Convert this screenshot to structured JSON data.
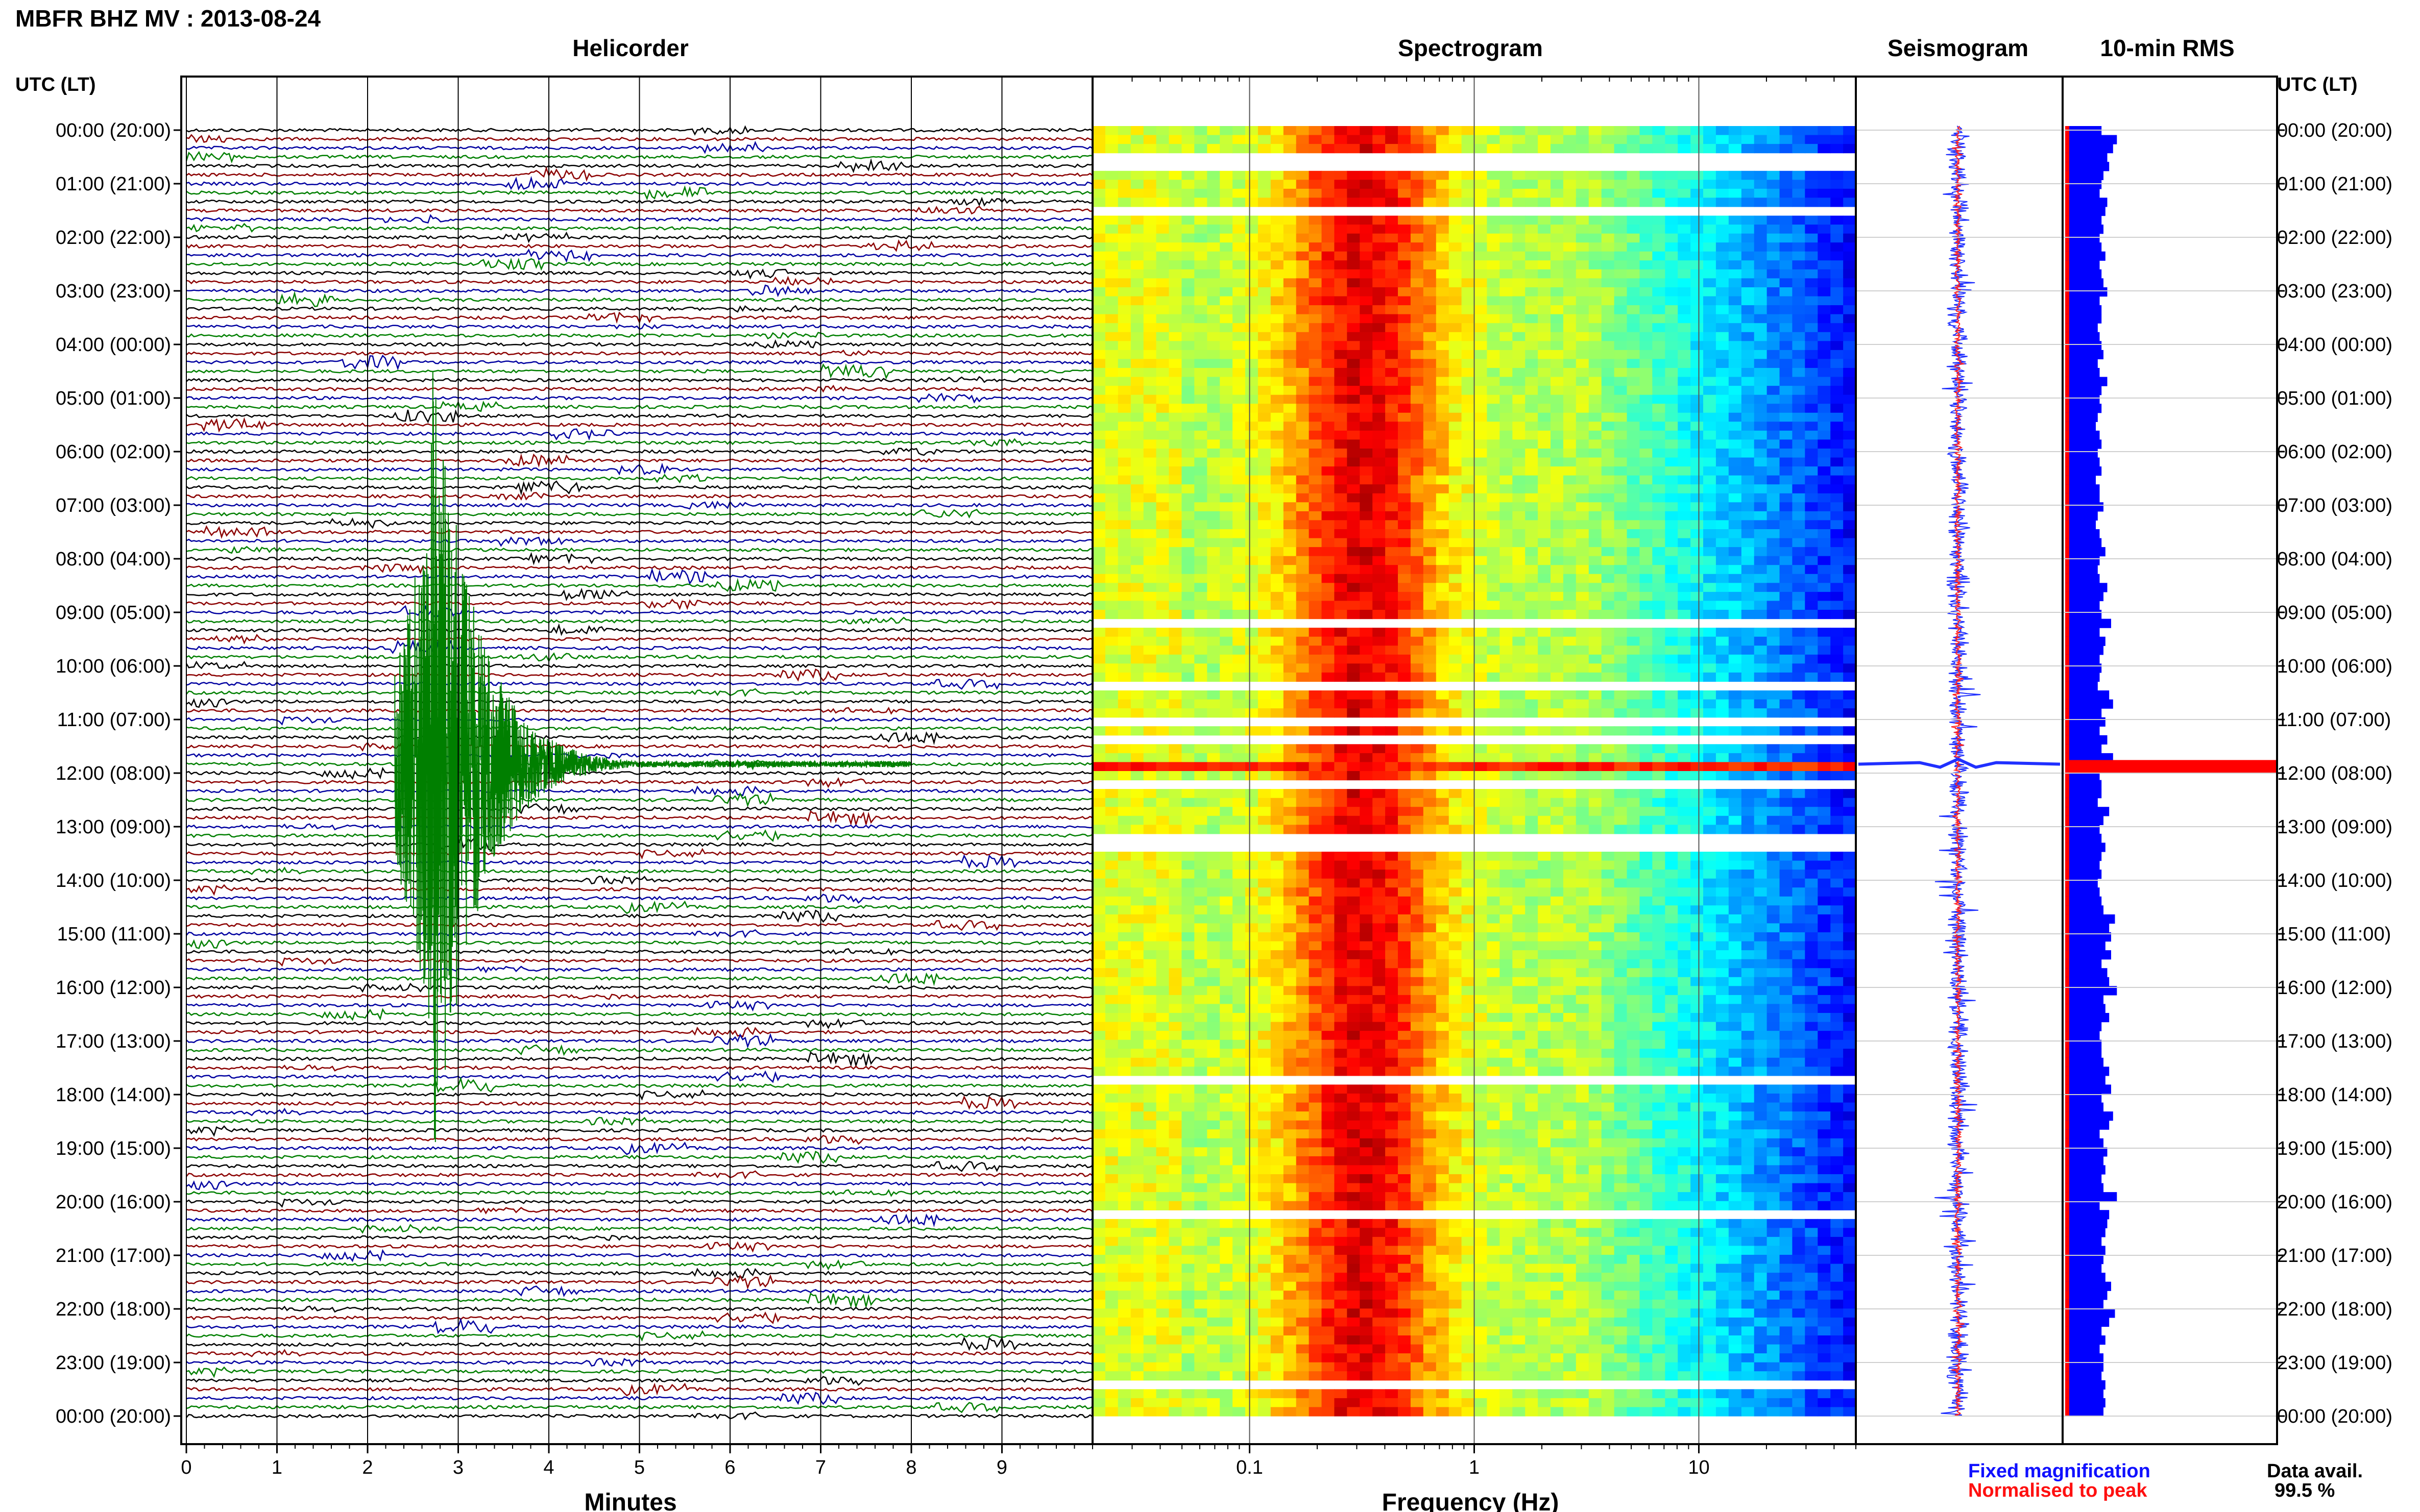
{
  "header": {
    "title": "MBFR BHZ MV : 2013-08-24"
  },
  "panels": {
    "helicorder": {
      "title": "Helicorder",
      "xlabel": "Minutes"
    },
    "spectrogram": {
      "title": "Spectrogram",
      "xlabel": "Frequency (Hz)"
    },
    "seismogram": {
      "title": "Seismogram"
    },
    "rms": {
      "title": "10-min RMS"
    }
  },
  "axis": {
    "left_label": "UTC (LT)",
    "right_label": "UTC (LT)"
  },
  "legend": {
    "fixed": "Fixed magnification",
    "normalised": "Normalised to peak",
    "fixed_color": "#1010ff",
    "normalised_color": "#ff1010"
  },
  "availability": {
    "label": "Data avail.",
    "value": "99.5 %"
  },
  "colors": {
    "trace_cycle": [
      "#000000",
      "#8b0000",
      "#0000a0",
      "#007f00"
    ],
    "rms_fixed": "#0000ff",
    "rms_normalised": "#ff0000"
  },
  "chart_data": [
    {
      "type": "line",
      "title": "Helicorder",
      "xlabel": "Minutes",
      "xlim": [
        0,
        10
      ],
      "x_ticks": [
        "0",
        "1",
        "2",
        "3",
        "4",
        "5",
        "6",
        "7",
        "8",
        "9"
      ],
      "row_duration_min": 10,
      "y_ticks_utc_lt": [
        "00:00 (20:00)",
        "01:00 (21:00)",
        "02:00 (22:00)",
        "03:00 (23:00)",
        "04:00 (00:00)",
        "05:00 (01:00)",
        "06:00 (02:00)",
        "07:00 (03:00)",
        "08:00 (04:00)",
        "09:00 (05:00)",
        "10:00 (06:00)",
        "11:00 (07:00)",
        "12:00 (08:00)",
        "13:00 (09:00)",
        "14:00 (10:00)",
        "15:00 (11:00)",
        "16:00 (12:00)",
        "17:00 (13:00)",
        "18:00 (14:00)",
        "19:00 (15:00)",
        "20:00 (16:00)",
        "21:00 (17:00)",
        "22:00 (18:00)",
        "23:00 (19:00)",
        "00:00 (20:00)"
      ],
      "event": {
        "row_utc": "11:50",
        "onset_min": 2.3,
        "peak_min": 2.7,
        "coda_end_min": 8.0
      }
    },
    {
      "type": "heatmap",
      "title": "Spectrogram",
      "xlabel": "Frequency (Hz)",
      "xscale": "log",
      "xlim": [
        0.02,
        50
      ],
      "x_ticks": [
        "0.1",
        "1",
        "10"
      ],
      "dominant_band_hz": [
        0.25,
        0.4
      ],
      "event_row_utc": "11:50"
    },
    {
      "type": "line",
      "title": "Seismogram",
      "rows": 144,
      "spike_row_utc": "11:50"
    },
    {
      "type": "bar",
      "title": "10-min RMS",
      "orientation": "horizontal",
      "series": [
        {
          "name": "Fixed magnification",
          "values": [
            1.9,
            2.7,
            2.5,
            2.2,
            2.3,
            2.0,
            1.9,
            1.8,
            2.2,
            2.1,
            1.9,
            2.0,
            1.8,
            1.9,
            2.1,
            1.8,
            1.9,
            2.0,
            2.2,
            1.8,
            1.9,
            1.9,
            1.7,
            1.8,
            1.9,
            2.0,
            1.7,
            1.8,
            2.2,
            1.9,
            1.8,
            1.9,
            1.7,
            1.6,
            1.8,
            1.9,
            1.7,
            1.8,
            1.9,
            1.6,
            1.8,
            1.8,
            2.0,
            1.7,
            1.6,
            1.8,
            1.9,
            2.1,
            1.8,
            1.7,
            1.8,
            2.2,
            2.0,
            1.8,
            1.9,
            2.4,
            1.8,
            2.1,
            2.0,
            1.8,
            1.9,
            1.8,
            1.7,
            2.3,
            2.5,
            1.9,
            2.1,
            1.8,
            2.2,
            1.9,
            2.5,
            2.0,
            1.8,
            1.9,
            1.9,
            1.7,
            2.3,
            2.0,
            1.8,
            1.9,
            2.1,
            1.9,
            1.8,
            1.9,
            1.7,
            1.8,
            1.9,
            2.0,
            2.6,
            2.3,
            2.4,
            2.1,
            2.4,
            1.9,
            2.2,
            2.3,
            2.7,
            2.0,
            2.1,
            2.3,
            1.9,
            1.8,
            1.9,
            1.9,
            2.0,
            2.3,
            2.1,
            2.4,
            1.9,
            2.0,
            2.5,
            2.3,
            1.8,
            2.0,
            2.2,
            2.0,
            2.1,
            1.9,
            2.0,
            2.7,
            1.8,
            2.3,
            2.2,
            2.1,
            1.9,
            2.1,
            2.0,
            1.9,
            2.1,
            2.4,
            2.2,
            2.0,
            2.6,
            2.3,
            1.9,
            2.1,
            1.8,
            2.0,
            2.0,
            1.9,
            2.1,
            2.0,
            2.1,
            2.0
          ]
        },
        {
          "name": "Normalised to peak",
          "peak_row_utc": "11:50"
        }
      ]
    }
  ]
}
